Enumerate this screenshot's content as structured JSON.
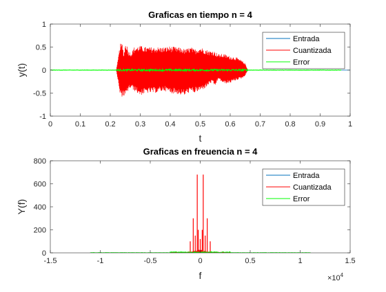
{
  "figure": {
    "background": "#ffffff"
  },
  "chart_data": [
    {
      "type": "line",
      "title": "Graficas en tiempo n = 4",
      "xlabel": "t",
      "ylabel": "y(t)",
      "xlim": [
        0,
        1
      ],
      "ylim": [
        -1,
        1
      ],
      "xticks": [
        0,
        0.1,
        0.2,
        0.3,
        0.4,
        0.5,
        0.6,
        0.7,
        0.8,
        0.9,
        1
      ],
      "xtick_labels": [
        "0",
        "0.1",
        "0.2",
        "0.3",
        "0.4",
        "0.5",
        "0.6",
        "0.7",
        "0.8",
        "0.9",
        "1"
      ],
      "yticks": [
        -1,
        -0.5,
        0,
        0.5,
        1
      ],
      "ytick_labels": [
        "-1",
        "-0.5",
        "0",
        "0.5",
        "1"
      ],
      "grid": false,
      "legend_position": "top-right",
      "series": [
        {
          "name": "Entrada",
          "color": "#0072BD",
          "x": [
            0,
            0.22,
            0.225,
            0.23,
            0.28,
            0.3,
            0.4,
            0.5,
            0.6,
            0.65,
            0.97
          ],
          "y": [
            0,
            0,
            0.2,
            -0.2,
            0.25,
            -0.2,
            0.2,
            -0.2,
            0.15,
            0,
            0
          ]
        },
        {
          "name": "Cuantizada",
          "color": "#FF0000",
          "envelope": {
            "x": [
              0.0,
              0.22,
              0.225,
              0.233,
              0.24,
              0.245,
              0.25,
              0.255,
              0.26,
              0.27,
              0.28,
              0.3,
              0.32,
              0.35,
              0.38,
              0.4,
              0.42,
              0.44,
              0.45,
              0.46,
              0.47,
              0.48,
              0.5,
              0.52,
              0.53,
              0.54,
              0.55,
              0.56,
              0.58,
              0.6,
              0.62,
              0.64,
              0.65,
              0.655,
              0.66,
              0.97
            ],
            "upper": [
              0.0,
              0.0,
              0.2,
              0.57,
              0.58,
              0.35,
              0.57,
              0.57,
              0.42,
              0.38,
              0.5,
              0.53,
              0.5,
              0.5,
              0.5,
              0.52,
              0.5,
              0.48,
              0.45,
              0.48,
              0.5,
              0.45,
              0.5,
              0.45,
              0.42,
              0.43,
              0.4,
              0.35,
              0.35,
              0.3,
              0.28,
              0.2,
              0.15,
              0.05,
              0.0,
              0.0
            ],
            "lower": [
              0.0,
              0.0,
              -0.2,
              -0.57,
              -0.58,
              -0.57,
              -0.57,
              -0.55,
              -0.42,
              -0.4,
              -0.45,
              -0.55,
              -0.5,
              -0.5,
              -0.45,
              -0.5,
              -0.52,
              -0.55,
              -0.55,
              -0.5,
              -0.48,
              -0.5,
              -0.45,
              -0.38,
              -0.3,
              -0.28,
              -0.35,
              -0.2,
              -0.3,
              -0.28,
              -0.22,
              -0.18,
              -0.12,
              -0.05,
              0.0,
              0.0
            ]
          }
        },
        {
          "name": "Error",
          "color": "#00FF00",
          "x": [
            0,
            0.97
          ],
          "amplitude": 0.02
        }
      ]
    },
    {
      "type": "line",
      "title": "Graficas en freuencia n = 4",
      "xlabel": "f",
      "ylabel": "Y(f)",
      "xlim": [
        -1.5,
        1.5
      ],
      "ylim": [
        0,
        800
      ],
      "x_multiplier": "×10",
      "x_multiplier_exponent": "4",
      "xticks": [
        -1.5,
        -1,
        -0.5,
        0,
        0.5,
        1,
        1.5
      ],
      "xtick_labels": [
        "-1.5",
        "-1",
        "-0.5",
        "0",
        "0.5",
        "1",
        "1.5"
      ],
      "yticks": [
        0,
        200,
        400,
        600,
        800
      ],
      "ytick_labels": [
        "0",
        "200",
        "400",
        "600",
        "800"
      ],
      "grid": false,
      "legend_position": "top-right",
      "series": [
        {
          "name": "Entrada",
          "color": "#0072BD",
          "x": [
            -1.1025,
            1.1025
          ],
          "y": [
            0,
            0
          ]
        },
        {
          "name": "Cuantizada",
          "color": "#FF0000",
          "peaks": [
            {
              "x": -0.1,
              "y": 100
            },
            {
              "x": -0.07,
              "y": 300
            },
            {
              "x": -0.05,
              "y": 150
            },
            {
              "x": -0.03,
              "y": 680
            },
            {
              "x": -0.02,
              "y": 200
            },
            {
              "x": 0.0,
              "y": 120
            },
            {
              "x": 0.02,
              "y": 200
            },
            {
              "x": 0.03,
              "y": 680
            },
            {
              "x": 0.05,
              "y": 150
            },
            {
              "x": 0.07,
              "y": 300
            },
            {
              "x": 0.1,
              "y": 100
            }
          ],
          "noise_range": [
            -0.3,
            0.3
          ],
          "noise_level": 30
        },
        {
          "name": "Error",
          "color": "#00FF00",
          "x": [
            -1.1025,
            1.1025
          ],
          "noise_level": 4
        }
      ]
    }
  ]
}
